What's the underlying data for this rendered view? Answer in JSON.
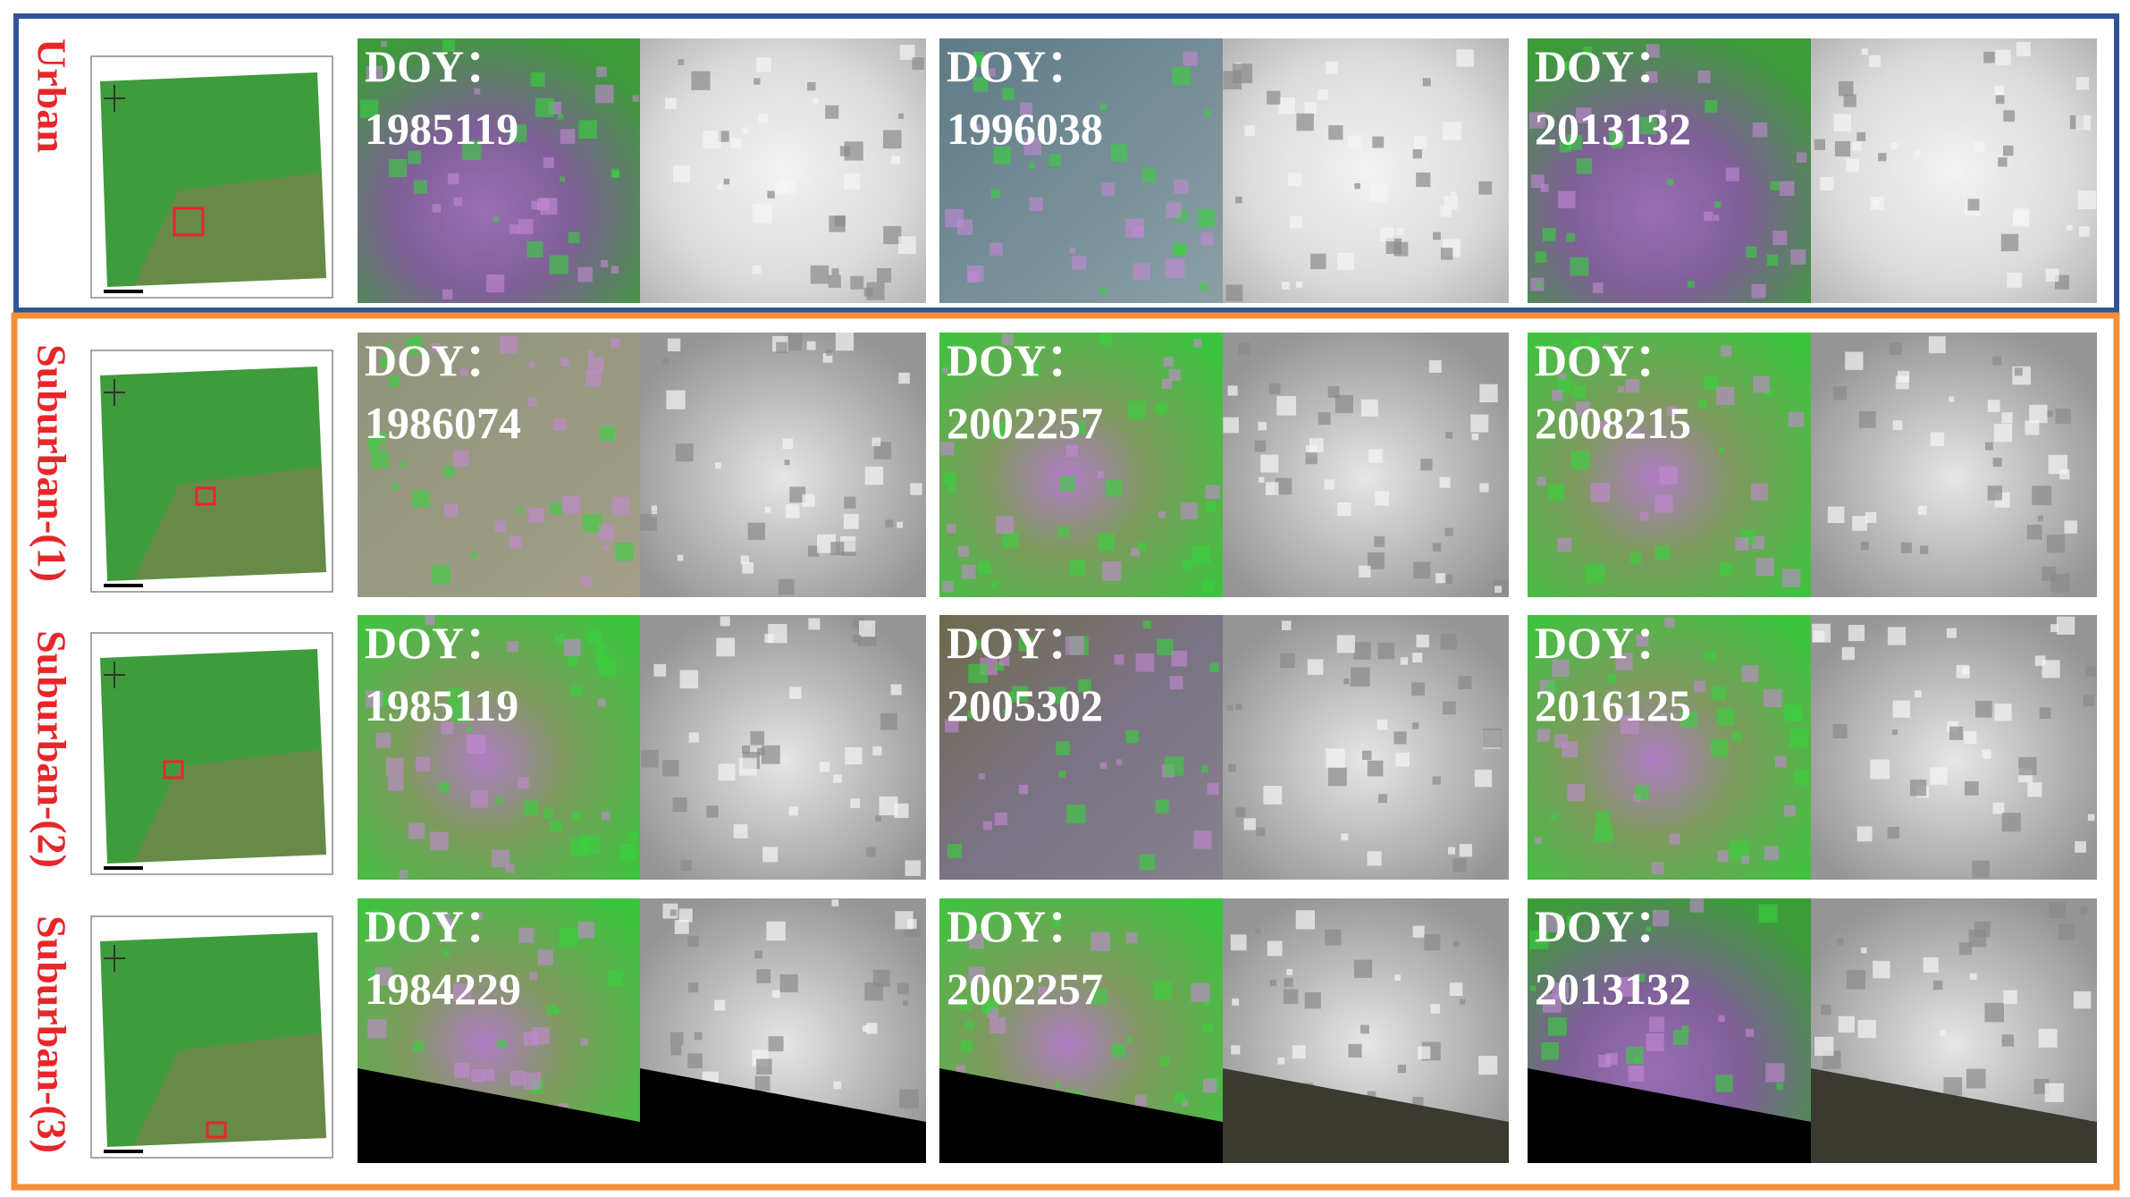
{
  "rows": [
    {
      "label": "Urban",
      "panels": [
        {
          "prefix": "DOY：",
          "date": "1985119"
        },
        {
          "prefix": "DOY：",
          "date": "1996038"
        },
        {
          "prefix": "DOY：",
          "date": "2013132"
        }
      ]
    },
    {
      "label": "Suburban-(1)",
      "panels": [
        {
          "prefix": "DOY：",
          "date": "1986074"
        },
        {
          "prefix": "DOY：",
          "date": "2002257"
        },
        {
          "prefix": "DOY：",
          "date": "2008215"
        }
      ]
    },
    {
      "label": "Suburban-(2)",
      "panels": [
        {
          "prefix": "DOY：",
          "date": "1985119"
        },
        {
          "prefix": "DOY：",
          "date": "2005302"
        },
        {
          "prefix": "DOY：",
          "date": "2016125"
        }
      ]
    },
    {
      "label": "Suburban-(3)",
      "panels": [
        {
          "prefix": "DOY：",
          "date": "1984229"
        },
        {
          "prefix": "DOY：",
          "date": "2002257"
        },
        {
          "prefix": "DOY：",
          "date": "2013132"
        }
      ]
    }
  ]
}
